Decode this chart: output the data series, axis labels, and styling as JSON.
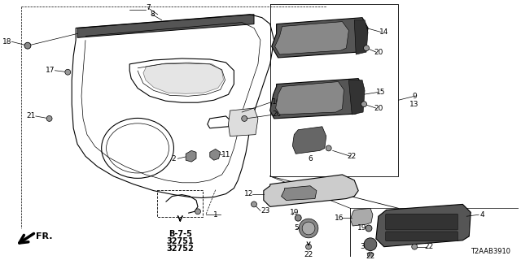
{
  "bg_color": "#ffffff",
  "line_color": "#000000",
  "ref_code": "T2AAB3910",
  "bold_text_b75": "B-7-5",
  "bold_text_n1": "32751",
  "bold_text_n2": "32752",
  "figsize": [
    6.4,
    3.2
  ],
  "dpi": 100
}
